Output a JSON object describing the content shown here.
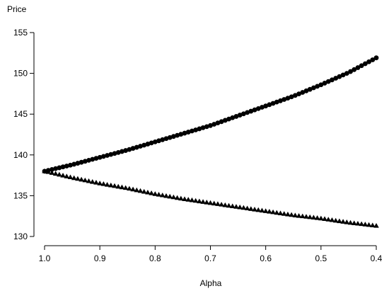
{
  "chart_data": {
    "type": "scatter",
    "title": "",
    "xlabel": "Alpha",
    "ylabel": "Price",
    "x_reversed": true,
    "xlim": [
      1.0,
      0.4
    ],
    "ylim": [
      130,
      155
    ],
    "x_ticks": [
      "1.0",
      "0.9",
      "0.8",
      "0.7",
      "0.6",
      "0.5",
      "0.4"
    ],
    "y_ticks": [
      "130",
      "135",
      "140",
      "145",
      "150",
      "155"
    ],
    "x_tick_values": [
      1.0,
      0.9,
      0.8,
      0.7,
      0.6,
      0.5,
      0.4
    ],
    "y_tick_values": [
      130,
      135,
      140,
      145,
      150,
      155
    ],
    "grid": false,
    "legend": "none",
    "series": [
      {
        "marker": "circle",
        "color": "#000000",
        "x": [
          1.0,
          0.95,
          0.9,
          0.85,
          0.8,
          0.75,
          0.7,
          0.65,
          0.6,
          0.55,
          0.5,
          0.45,
          0.4
        ],
        "y": [
          138.0,
          138.8,
          139.7,
          140.6,
          141.6,
          142.6,
          143.6,
          144.8,
          146.0,
          147.2,
          148.6,
          150.1,
          151.9
        ]
      },
      {
        "marker": "triangle",
        "color": "#000000",
        "x": [
          1.0,
          0.95,
          0.9,
          0.85,
          0.8,
          0.75,
          0.7,
          0.65,
          0.6,
          0.55,
          0.5,
          0.45,
          0.4
        ],
        "y": [
          138.0,
          137.2,
          136.5,
          135.9,
          135.2,
          134.6,
          134.1,
          133.6,
          133.1,
          132.6,
          132.2,
          131.7,
          131.3
        ]
      }
    ]
  }
}
